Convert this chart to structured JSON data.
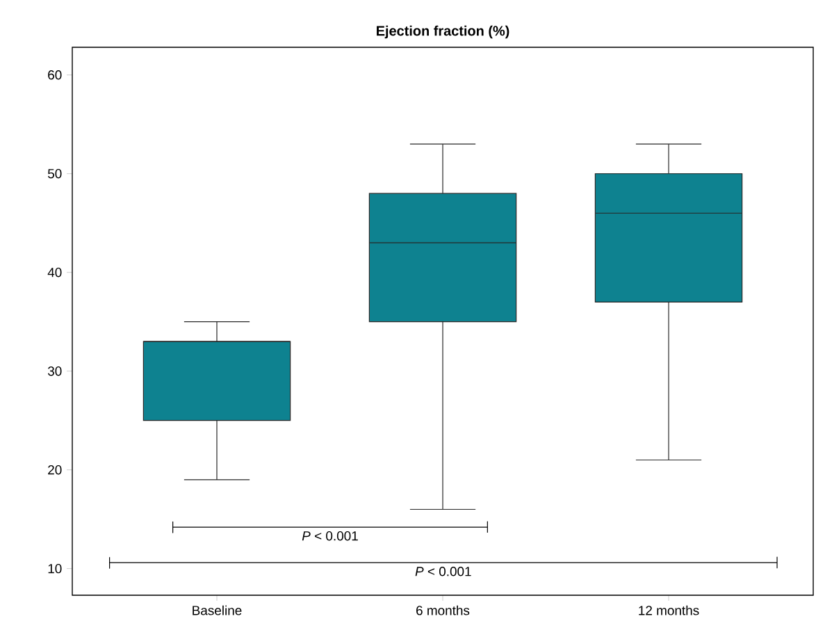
{
  "chart_data": {
    "type": "box",
    "title": "Ejection fraction (%)",
    "categories": [
      "Baseline",
      "6 months",
      "12 months"
    ],
    "color": "#0e8290",
    "boxes": [
      {
        "low": 19,
        "q1": 25,
        "median": 33,
        "q3": 33,
        "high": 35
      },
      {
        "low": 16,
        "q1": 35,
        "median": 43,
        "q3": 48,
        "high": 53
      },
      {
        "low": 21,
        "q1": 37,
        "median": 46,
        "q3": 50,
        "high": 53
      }
    ],
    "ylim": [
      7.3,
      62.8
    ],
    "yticks": [
      10,
      20,
      30,
      40,
      50,
      60
    ],
    "annotations": [
      "*P* < 0.001",
      "*P* < 0.001"
    ]
  }
}
